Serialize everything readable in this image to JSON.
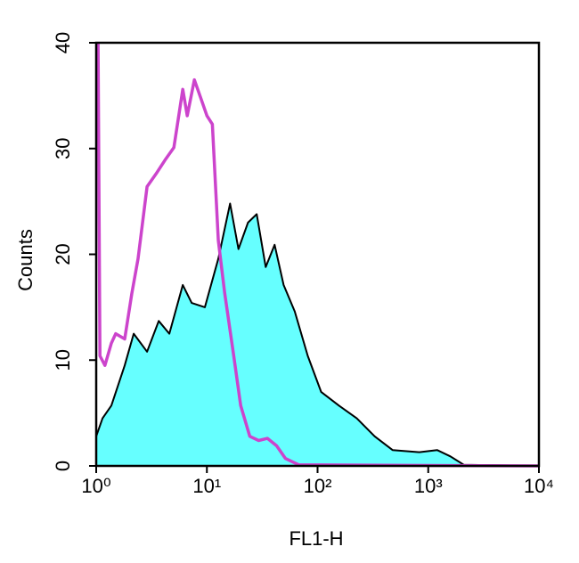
{
  "chart_data": {
    "type": "histogram-overlay",
    "xlabel": "FL1-H",
    "ylabel": "Counts",
    "xscale": "log",
    "xlim": [
      1,
      10000
    ],
    "ylim": [
      0,
      40
    ],
    "xticks": [
      {
        "value": 1,
        "label": "10⁰"
      },
      {
        "value": 10,
        "label": "10¹"
      },
      {
        "value": 100,
        "label": "10²"
      },
      {
        "value": 1000,
        "label": "10³"
      },
      {
        "value": 10000,
        "label": "10⁴"
      }
    ],
    "yticks": [
      0,
      10,
      20,
      30,
      40
    ],
    "series": [
      {
        "color": "#000000",
        "fill": "#66ffff",
        "x": [
          1,
          1.14,
          1.37,
          1.81,
          2.18,
          2.88,
          3.67,
          4.58,
          6.06,
          7.29,
          9.6,
          12.7,
          16.2,
          19.3,
          23.5,
          28.2,
          34,
          40.9,
          49.4,
          62.2,
          81.5,
          107.7,
          156,
          226,
          328,
          476,
          830,
          1203,
          1585,
          2100,
          10000
        ],
        "values": [
          2.8,
          4.5,
          5.7,
          9.5,
          12.5,
          10.8,
          13.7,
          12.5,
          17.1,
          15.4,
          15,
          19.6,
          24.8,
          20.5,
          23,
          23.8,
          18.8,
          20.9,
          17.1,
          14.6,
          10.4,
          7,
          5.7,
          4.5,
          2.8,
          1.5,
          1.3,
          1.5,
          0.9,
          0.1,
          0
        ]
      },
      {
        "color": "#cc44cc",
        "x": [
          1.04,
          1.08,
          1.2,
          1.37,
          1.5,
          1.81,
          2.1,
          2.39,
          2.88,
          3.47,
          4.18,
          5.03,
          6.06,
          6.65,
          7.71,
          8.79,
          10,
          11.2,
          12.7,
          14.5,
          17.5,
          20.2,
          24.4,
          29.4,
          35.3,
          42.6,
          51.3,
          67.6,
          10000
        ],
        "values": [
          40,
          10.4,
          9.5,
          11.6,
          12.5,
          12,
          16.3,
          19.6,
          26.4,
          27.6,
          28.9,
          30.1,
          35.6,
          33.1,
          36.5,
          34.8,
          33.1,
          32.3,
          21.3,
          16.3,
          10.4,
          5.7,
          2.8,
          2.4,
          2.6,
          1.9,
          0.7,
          0.1,
          0
        ]
      }
    ]
  }
}
